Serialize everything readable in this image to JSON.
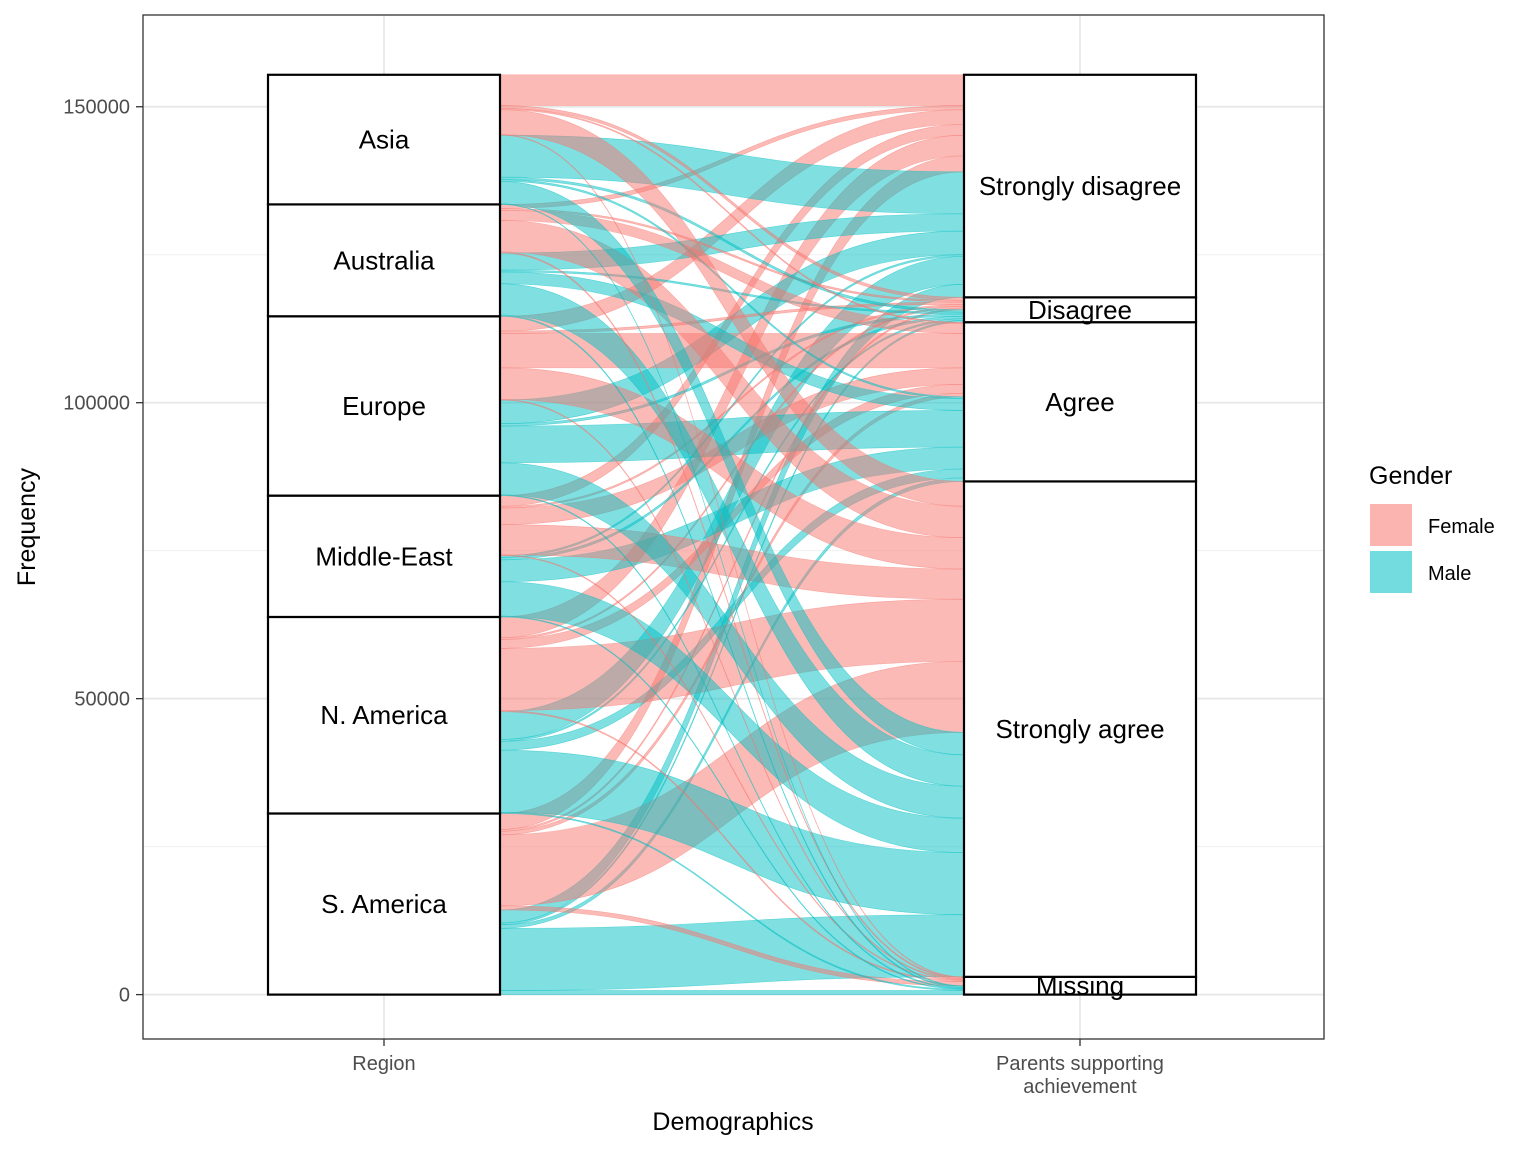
{
  "chart_data": {
    "type": "alluvial",
    "title": "",
    "xlabel": "Demographics",
    "ylabel": "Frequency",
    "ylim": [
      -7500,
      165500
    ],
    "y_ticks": [
      0,
      50000,
      100000,
      150000
    ],
    "grid": true,
    "axes": [
      {
        "key": "region",
        "label_lines": [
          "Region"
        ]
      },
      {
        "key": "parents",
        "label_lines": [
          "Parents supporting",
          "achievement"
        ]
      }
    ],
    "region_strata": [
      "S. America",
      "N. America",
      "Middle-East",
      "Europe",
      "Australia",
      "Asia"
    ],
    "parents_strata": [
      "Missing",
      "Strongly agree",
      "Agree",
      "Disagree",
      "Strongly disagree"
    ],
    "fill_legend": {
      "title": "Gender",
      "entries": [
        {
          "name": "Female",
          "color": "#F8766D"
        },
        {
          "name": "Male",
          "color": "#00BFC4"
        }
      ],
      "placement": "right"
    },
    "flows": [
      {
        "region": "S. America",
        "gender": "Male",
        "parents": "Missing",
        "value": 700
      },
      {
        "region": "S. America",
        "gender": "Male",
        "parents": "Strongly agree",
        "value": 10500
      },
      {
        "region": "S. America",
        "gender": "Male",
        "parents": "Agree",
        "value": 600
      },
      {
        "region": "S. America",
        "gender": "Male",
        "parents": "Disagree",
        "value": 300
      },
      {
        "region": "S. America",
        "gender": "Male",
        "parents": "Strongly disagree",
        "value": 2200
      },
      {
        "region": "S. America",
        "gender": "Female",
        "parents": "Missing",
        "value": 700
      },
      {
        "region": "S. America",
        "gender": "Female",
        "parents": "Strongly agree",
        "value": 12000
      },
      {
        "region": "S. America",
        "gender": "Female",
        "parents": "Agree",
        "value": 600
      },
      {
        "region": "S. America",
        "gender": "Female",
        "parents": "Disagree",
        "value": 300
      },
      {
        "region": "S. America",
        "gender": "Female",
        "parents": "Strongly disagree",
        "value": 2700
      },
      {
        "region": "N. America",
        "gender": "Male",
        "parents": "Missing",
        "value": 200
      },
      {
        "region": "N. America",
        "gender": "Male",
        "parents": "Strongly agree",
        "value": 10500
      },
      {
        "region": "N. America",
        "gender": "Male",
        "parents": "Agree",
        "value": 1500
      },
      {
        "region": "N. America",
        "gender": "Male",
        "parents": "Disagree",
        "value": 300
      },
      {
        "region": "N. America",
        "gender": "Male",
        "parents": "Strongly disagree",
        "value": 4700
      },
      {
        "region": "N. America",
        "gender": "Female",
        "parents": "Missing",
        "value": 200
      },
      {
        "region": "N. America",
        "gender": "Female",
        "parents": "Strongly agree",
        "value": 10500
      },
      {
        "region": "N. America",
        "gender": "Female",
        "parents": "Agree",
        "value": 1500
      },
      {
        "region": "N. America",
        "gender": "Female",
        "parents": "Disagree",
        "value": 300
      },
      {
        "region": "N. America",
        "gender": "Female",
        "parents": "Strongly disagree",
        "value": 3500
      },
      {
        "region": "Middle-East",
        "gender": "Male",
        "parents": "Missing",
        "value": 150
      },
      {
        "region": "Middle-East",
        "gender": "Male",
        "parents": "Strongly agree",
        "value": 5800
      },
      {
        "region": "Middle-East",
        "gender": "Male",
        "parents": "Agree",
        "value": 3700
      },
      {
        "region": "Middle-East",
        "gender": "Male",
        "parents": "Disagree",
        "value": 400
      },
      {
        "region": "Middle-East",
        "gender": "Male",
        "parents": "Strongly disagree",
        "value": 300
      },
      {
        "region": "Middle-East",
        "gender": "Female",
        "parents": "Missing",
        "value": 150
      },
      {
        "region": "Middle-East",
        "gender": "Female",
        "parents": "Strongly agree",
        "value": 5100
      },
      {
        "region": "Middle-East",
        "gender": "Female",
        "parents": "Agree",
        "value": 2800
      },
      {
        "region": "Middle-East",
        "gender": "Female",
        "parents": "Disagree",
        "value": 300
      },
      {
        "region": "Middle-East",
        "gender": "Female",
        "parents": "Strongly disagree",
        "value": 1800
      },
      {
        "region": "Europe",
        "gender": "Male",
        "parents": "Missing",
        "value": 150
      },
      {
        "region": "Europe",
        "gender": "Male",
        "parents": "Strongly agree",
        "value": 5400
      },
      {
        "region": "Europe",
        "gender": "Male",
        "parents": "Agree",
        "value": 6200
      },
      {
        "region": "Europe",
        "gender": "Male",
        "parents": "Disagree",
        "value": 400
      },
      {
        "region": "Europe",
        "gender": "Male",
        "parents": "Strongly disagree",
        "value": 4000
      },
      {
        "region": "Europe",
        "gender": "Female",
        "parents": "Missing",
        "value": 150
      },
      {
        "region": "Europe",
        "gender": "Female",
        "parents": "Strongly agree",
        "value": 5300
      },
      {
        "region": "Europe",
        "gender": "Female",
        "parents": "Agree",
        "value": 5800
      },
      {
        "region": "Europe",
        "gender": "Female",
        "parents": "Disagree",
        "value": 400
      },
      {
        "region": "Europe",
        "gender": "Female",
        "parents": "Strongly disagree",
        "value": 2500
      },
      {
        "region": "Australia",
        "gender": "Male",
        "parents": "Missing",
        "value": 200
      },
      {
        "region": "Australia",
        "gender": "Male",
        "parents": "Strongly agree",
        "value": 5300
      },
      {
        "region": "Australia",
        "gender": "Male",
        "parents": "Agree",
        "value": 2000
      },
      {
        "region": "Australia",
        "gender": "Male",
        "parents": "Disagree",
        "value": 300
      },
      {
        "region": "Australia",
        "gender": "Male",
        "parents": "Strongly disagree",
        "value": 2900
      },
      {
        "region": "Australia",
        "gender": "Female",
        "parents": "Missing",
        "value": 200
      },
      {
        "region": "Australia",
        "gender": "Female",
        "parents": "Strongly agree",
        "value": 5300
      },
      {
        "region": "Australia",
        "gender": "Female",
        "parents": "Agree",
        "value": 1700
      },
      {
        "region": "Australia",
        "gender": "Female",
        "parents": "Disagree",
        "value": 300
      },
      {
        "region": "Australia",
        "gender": "Female",
        "parents": "Strongly disagree",
        "value": 700
      },
      {
        "region": "Asia",
        "gender": "Male",
        "parents": "Missing",
        "value": 100
      },
      {
        "region": "Asia",
        "gender": "Male",
        "parents": "Strongly agree",
        "value": 3800
      },
      {
        "region": "Asia",
        "gender": "Male",
        "parents": "Agree",
        "value": 300
      },
      {
        "region": "Asia",
        "gender": "Male",
        "parents": "Disagree",
        "value": 400
      },
      {
        "region": "Asia",
        "gender": "Male",
        "parents": "Strongly disagree",
        "value": 7100
      },
      {
        "region": "Asia",
        "gender": "Female",
        "parents": "Missing",
        "value": 100
      },
      {
        "region": "Asia",
        "gender": "Female",
        "parents": "Strongly agree",
        "value": 4200
      },
      {
        "region": "Asia",
        "gender": "Female",
        "parents": "Agree",
        "value": 200
      },
      {
        "region": "Asia",
        "gender": "Female",
        "parents": "Disagree",
        "value": 500
      },
      {
        "region": "Asia",
        "gender": "Female",
        "parents": "Strongly disagree",
        "value": 5200
      }
    ]
  }
}
